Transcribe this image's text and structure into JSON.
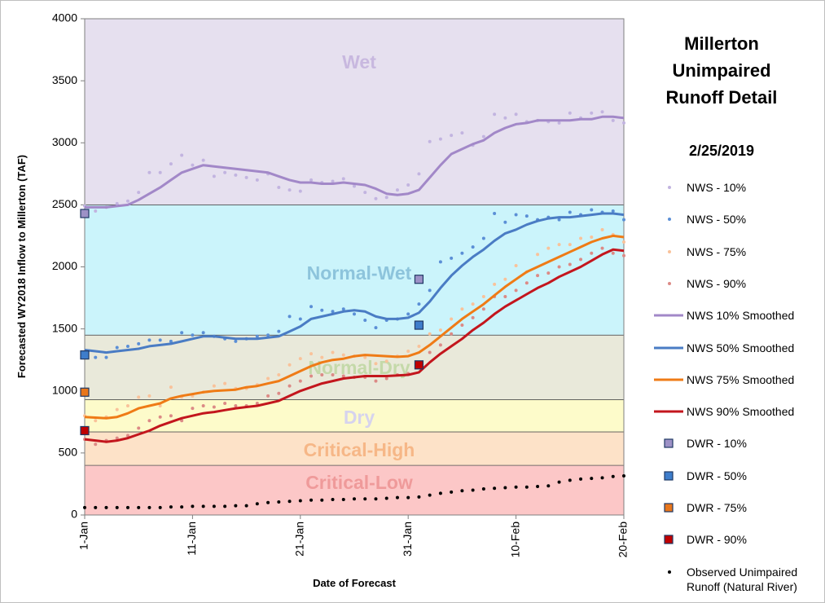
{
  "chart_data": {
    "type": "line",
    "title": "Millerton Unimpaired Runoff Detail",
    "subtitle": "2/25/2019",
    "x_label": "Date of Forecast",
    "y_label": "Forecasted WY2018 Inflow to Millerton (TAF)",
    "x": [
      "1-Jan",
      null,
      null,
      null,
      null,
      null,
      null,
      null,
      null,
      null,
      "11-Jan",
      null,
      null,
      null,
      null,
      null,
      null,
      null,
      null,
      null,
      "21-Jan",
      null,
      null,
      null,
      null,
      null,
      null,
      null,
      null,
      null,
      "31-Jan",
      null,
      null,
      null,
      null,
      null,
      null,
      null,
      null,
      null,
      "10-Feb",
      null,
      null,
      null,
      null,
      null,
      null,
      null,
      null,
      null,
      "20-Feb"
    ],
    "ylim": [
      0,
      4000
    ],
    "yticks": [
      0,
      500,
      1000,
      1500,
      2000,
      2500,
      3000,
      3500,
      4000
    ],
    "bands": [
      {
        "name": "Critical-Low",
        "from": 0,
        "to": 400,
        "color": "#fcc7c7",
        "label_color": "#ef9a9a"
      },
      {
        "name": "Critical-High",
        "from": 400,
        "to": 670,
        "color": "#fde2c8",
        "label_color": "#f6b787"
      },
      {
        "name": "Dry",
        "from": 670,
        "to": 930,
        "color": "#fdfbca",
        "label_color": "#d6d3ee"
      },
      {
        "name": "Normal-Dry",
        "from": 930,
        "to": 1450,
        "color": "#e9e9da",
        "label_color": "#c4d9a9"
      },
      {
        "name": "Normal-Wet",
        "from": 1450,
        "to": 2500,
        "color": "#cbf4fb",
        "label_color": "#8dc4dc"
      },
      {
        "name": "Wet",
        "from": 2500,
        "to": 4000,
        "color": "#e6e0ef",
        "label_color": "#c8b8df"
      }
    ],
    "series": [
      {
        "name": "NWS - 10%",
        "style": "points",
        "color": "#c2b4e0",
        "values": [
          2490,
          2450,
          2480,
          2510,
          2530,
          2600,
          2760,
          2760,
          2830,
          2900,
          2820,
          2860,
          2730,
          2760,
          2740,
          2720,
          2700,
          2750,
          2640,
          2620,
          2610,
          2700,
          2680,
          2690,
          2710,
          2650,
          2600,
          2550,
          2560,
          2620,
          2660,
          2750,
          3010,
          3030,
          3060,
          3080,
          2980,
          3050,
          3230,
          3200,
          3230,
          3170,
          3180,
          3170,
          3160,
          3240,
          3200,
          3240,
          3250,
          3180,
          3160
        ]
      },
      {
        "name": "NWS - 50%",
        "style": "points",
        "color": "#5b8fd6",
        "values": [
          1300,
          1270,
          1270,
          1350,
          1360,
          1380,
          1410,
          1410,
          1400,
          1470,
          1450,
          1470,
          1440,
          1420,
          1400,
          1420,
          1440,
          1450,
          1480,
          1600,
          1580,
          1680,
          1650,
          1640,
          1660,
          1620,
          1570,
          1510,
          1570,
          1580,
          1620,
          1700,
          1810,
          2040,
          2070,
          2110,
          2160,
          2230,
          2430,
          2360,
          2420,
          2410,
          2380,
          2400,
          2380,
          2440,
          2420,
          2460,
          2440,
          2450,
          2380
        ]
      },
      {
        "name": "NWS - 75%",
        "style": "points",
        "color": "#f9c29a",
        "values": [
          800,
          760,
          790,
          850,
          880,
          950,
          960,
          880,
          1030,
          950,
          960,
          990,
          1040,
          1060,
          1020,
          1020,
          1050,
          1100,
          1130,
          1210,
          1260,
          1300,
          1270,
          1310,
          1290,
          1280,
          1270,
          1220,
          1240,
          1280,
          1320,
          1360,
          1460,
          1490,
          1580,
          1660,
          1700,
          1760,
          1860,
          1900,
          2010,
          1960,
          2100,
          2150,
          2180,
          2180,
          2230,
          2240,
          2300,
          2260,
          2200
        ]
      },
      {
        "name": "NWS - 90%",
        "style": "points",
        "color": "#dc8a86",
        "values": [
          610,
          570,
          600,
          620,
          640,
          700,
          760,
          790,
          800,
          760,
          860,
          880,
          870,
          900,
          880,
          880,
          900,
          960,
          980,
          1040,
          1080,
          1120,
          1130,
          1130,
          1120,
          1110,
          1110,
          1080,
          1100,
          1130,
          1140,
          1210,
          1310,
          1370,
          1460,
          1530,
          1590,
          1660,
          1760,
          1760,
          1810,
          1870,
          1930,
          1950,
          2000,
          2020,
          2060,
          2110,
          2150,
          2110,
          2090
        ]
      },
      {
        "name": "NWS 10% Smoothed",
        "style": "line",
        "color": "#a288c8",
        "values": [
          2480,
          2480,
          2480,
          2490,
          2500,
          2540,
          2590,
          2640,
          2700,
          2760,
          2790,
          2820,
          2810,
          2800,
          2790,
          2780,
          2770,
          2760,
          2730,
          2700,
          2680,
          2680,
          2670,
          2670,
          2680,
          2670,
          2660,
          2630,
          2590,
          2580,
          2590,
          2620,
          2720,
          2820,
          2910,
          2950,
          2990,
          3020,
          3080,
          3120,
          3150,
          3160,
          3180,
          3180,
          3180,
          3180,
          3190,
          3190,
          3210,
          3210,
          3200
        ]
      },
      {
        "name": "NWS 50% Smoothed",
        "style": "line",
        "color": "#4a7cc4",
        "values": [
          1330,
          1320,
          1310,
          1320,
          1330,
          1340,
          1360,
          1370,
          1380,
          1400,
          1420,
          1440,
          1440,
          1430,
          1420,
          1420,
          1420,
          1430,
          1440,
          1480,
          1520,
          1580,
          1600,
          1620,
          1640,
          1650,
          1640,
          1600,
          1580,
          1580,
          1590,
          1630,
          1720,
          1830,
          1930,
          2010,
          2080,
          2140,
          2210,
          2270,
          2300,
          2340,
          2370,
          2390,
          2400,
          2400,
          2410,
          2420,
          2430,
          2430,
          2420
        ]
      },
      {
        "name": "NWS 75% Smoothed",
        "style": "line",
        "color": "#ef7b16",
        "values": [
          790,
          785,
          780,
          790,
          820,
          860,
          880,
          900,
          940,
          960,
          975,
          990,
          1000,
          1005,
          1010,
          1030,
          1040,
          1060,
          1080,
          1120,
          1160,
          1200,
          1230,
          1250,
          1260,
          1280,
          1290,
          1285,
          1280,
          1275,
          1280,
          1310,
          1370,
          1440,
          1510,
          1580,
          1640,
          1700,
          1770,
          1840,
          1900,
          1960,
          2000,
          2040,
          2080,
          2120,
          2160,
          2200,
          2230,
          2250,
          2240
        ]
      },
      {
        "name": "NWS 90% Smoothed",
        "style": "line",
        "color": "#c3161d",
        "values": [
          610,
          600,
          590,
          600,
          620,
          650,
          680,
          720,
          750,
          780,
          800,
          820,
          830,
          845,
          860,
          870,
          880,
          900,
          920,
          960,
          1000,
          1030,
          1060,
          1080,
          1100,
          1110,
          1120,
          1120,
          1120,
          1125,
          1130,
          1150,
          1230,
          1300,
          1360,
          1420,
          1490,
          1550,
          1620,
          1680,
          1730,
          1780,
          1830,
          1870,
          1920,
          1960,
          2000,
          2050,
          2100,
          2140,
          2130
        ]
      },
      {
        "name": "DWR - 10%",
        "style": "square",
        "color": "#9d91c6",
        "values": [
          2430,
          null,
          null,
          null,
          null,
          null,
          null,
          null,
          null,
          null,
          null,
          null,
          null,
          null,
          null,
          null,
          null,
          null,
          null,
          null,
          null,
          null,
          null,
          null,
          null,
          null,
          null,
          null,
          null,
          null,
          null,
          1900,
          null,
          null,
          null,
          null,
          null,
          null,
          null,
          null,
          null,
          null,
          null,
          null,
          null,
          null,
          null,
          null,
          null,
          null,
          null
        ]
      },
      {
        "name": "DWR - 50%",
        "style": "square",
        "color": "#3e7dcb",
        "values": [
          1290,
          null,
          null,
          null,
          null,
          null,
          null,
          null,
          null,
          null,
          null,
          null,
          null,
          null,
          null,
          null,
          null,
          null,
          null,
          null,
          null,
          null,
          null,
          null,
          null,
          null,
          null,
          null,
          null,
          null,
          null,
          1530,
          null,
          null,
          null,
          null,
          null,
          null,
          null,
          null,
          null,
          null,
          null,
          null,
          null,
          null,
          null,
          null,
          null,
          null,
          null
        ]
      },
      {
        "name": "DWR - 75%",
        "style": "square",
        "color": "#e8761b",
        "values": [
          990,
          null,
          null,
          null,
          null,
          null,
          null,
          null,
          null,
          null,
          null,
          null,
          null,
          null,
          null,
          null,
          null,
          null,
          null,
          null,
          null,
          null,
          null,
          null,
          null,
          null,
          null,
          null,
          null,
          null,
          null,
          null,
          null,
          null,
          null,
          null,
          null,
          null,
          null,
          null,
          null,
          null,
          null,
          null,
          null,
          null,
          null,
          null,
          null,
          null,
          null
        ]
      },
      {
        "name": "DWR - 90%",
        "style": "square",
        "color": "#c00000",
        "values": [
          680,
          null,
          null,
          null,
          null,
          null,
          null,
          null,
          null,
          null,
          null,
          null,
          null,
          null,
          null,
          null,
          null,
          null,
          null,
          null,
          null,
          null,
          null,
          null,
          null,
          null,
          null,
          null,
          null,
          null,
          null,
          1210,
          null,
          null,
          null,
          null,
          null,
          null,
          null,
          null,
          null,
          null,
          null,
          null,
          null,
          null,
          null,
          null,
          null,
          null,
          null
        ]
      },
      {
        "name": "Observed Unimpaired Runoff (Natural River)",
        "style": "points",
        "color": "#000000",
        "values": [
          60,
          60,
          60,
          60,
          60,
          60,
          60,
          60,
          65,
          65,
          70,
          70,
          70,
          70,
          75,
          75,
          90,
          100,
          105,
          110,
          115,
          120,
          120,
          125,
          125,
          130,
          130,
          130,
          135,
          140,
          140,
          145,
          160,
          175,
          185,
          195,
          200,
          210,
          215,
          220,
          225,
          225,
          230,
          235,
          265,
          280,
          290,
          295,
          300,
          310,
          315
        ]
      }
    ]
  }
}
